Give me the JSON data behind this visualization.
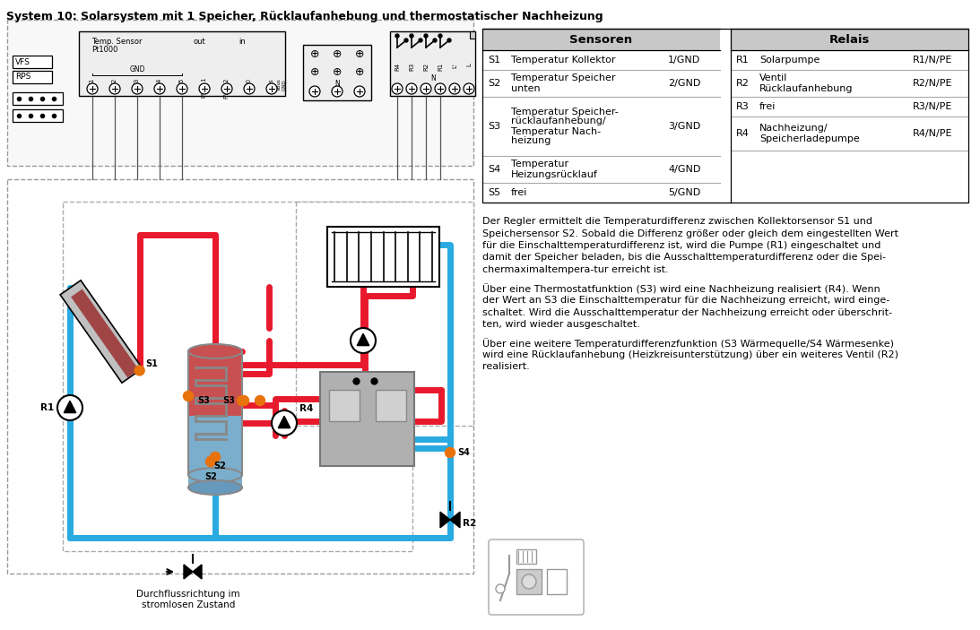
{
  "title": "System 10: Solarsystem mit 1 Speicher, Rücklaufanhebung und thermostatischer Nachheizung",
  "title_fontsize": 9,
  "background_color": "#ffffff",
  "sensoren_header": "Sensoren",
  "relais_header": "Relais",
  "sensoren": [
    {
      "id": "S1",
      "desc": "Temperatur Kollektor",
      "conn": "1/GND"
    },
    {
      "id": "S2",
      "desc": "Temperatur Speicher\nunten",
      "conn": "2/GND"
    },
    {
      "id": "S3",
      "desc": "Temperatur Speicher-\nrücklaufanhebung/\nTemperatur Nach-\nheizung",
      "conn": "3/GND"
    },
    {
      "id": "S4",
      "desc": "Temperatur\nHeizungsrücklauf",
      "conn": "4/GND"
    },
    {
      "id": "S5",
      "desc": "frei",
      "conn": "5/GND"
    }
  ],
  "relais": [
    {
      "id": "R1",
      "desc": "Solarpumpe",
      "conn": "R1/N/PE"
    },
    {
      "id": "R2",
      "desc": "Ventil\nRücklaufanhebung",
      "conn": "R2/N/PE"
    },
    {
      "id": "R3",
      "desc": "frei",
      "conn": "R3/N/PE"
    },
    {
      "id": "R4",
      "desc": "Nachheizung/\nSpeicherladepumpe",
      "conn": "R4/N/PE"
    }
  ],
  "desc_lines": [
    [
      "Der Regler ermittelt die Temperaturdifferenz zwischen Kollektorsensor S1 und",
      "Speichersensor S2. Sobald die Differenz größer oder gleich dem eingestellten Wert",
      "für die Einschalttemperaturdifferenz ist, wird die Pumpe (R1) eingeschaltet und",
      "damit der Speicher beladen, bis die Ausschalttemperaturdifferenz oder die Spei-",
      "chermaximaltempera­tur erreicht ist."
    ],
    [
      "Über eine Thermostatfunktion (S3) wird eine Nachheizung realisiert (R4). Wenn",
      "der Wert an S3 die Einschalttemperatur für die Nachheizung erreicht, wird einge-",
      "schaltet. Wird die Ausschalttemperatur der Nachheizung erreicht oder überschrit-",
      "ten, wird wieder ausgeschaltet."
    ],
    [
      "Über eine weitere Temperaturdifferenzfunktion (S3 Wärmequelle/S4 Wärmesenke)",
      "wird eine Rücklaufanhebung (Heizkreisunterstützung) über ein weiteres Ventil (R2)",
      "realisiert."
    ]
  ],
  "red_color": "#e8192c",
  "blue_color": "#29aae1",
  "orange_color": "#e8720c",
  "table_header_bg": "#c8c8c8",
  "table_line_color": "#aaaaaa",
  "pipe_lw": 5
}
